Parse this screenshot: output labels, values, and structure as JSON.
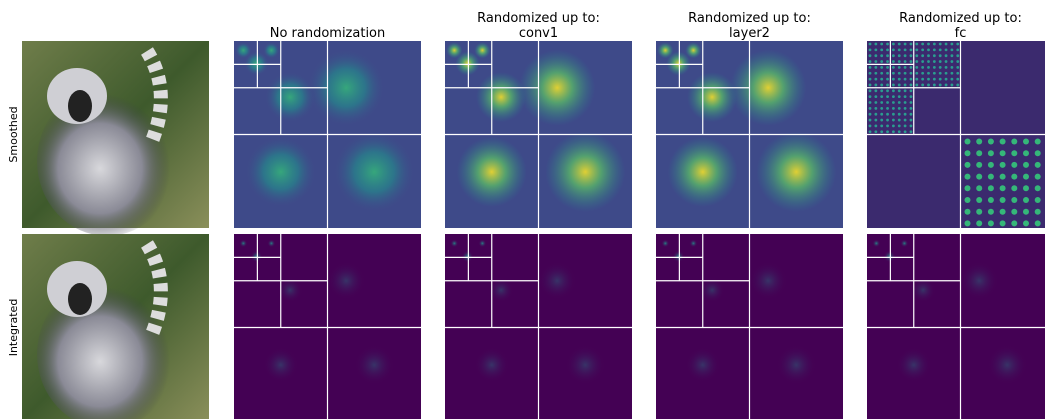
{
  "columns": [
    {
      "title": [
        "No randomization"
      ]
    },
    {
      "title": [
        "Randomized up to:",
        "conv1"
      ]
    },
    {
      "title": [
        "Randomized up to:",
        "layer2"
      ]
    },
    {
      "title": [
        "Randomized up to:",
        "fc"
      ]
    }
  ],
  "rows": [
    {
      "label": "Smoothed"
    },
    {
      "label": "Integrated"
    }
  ]
}
